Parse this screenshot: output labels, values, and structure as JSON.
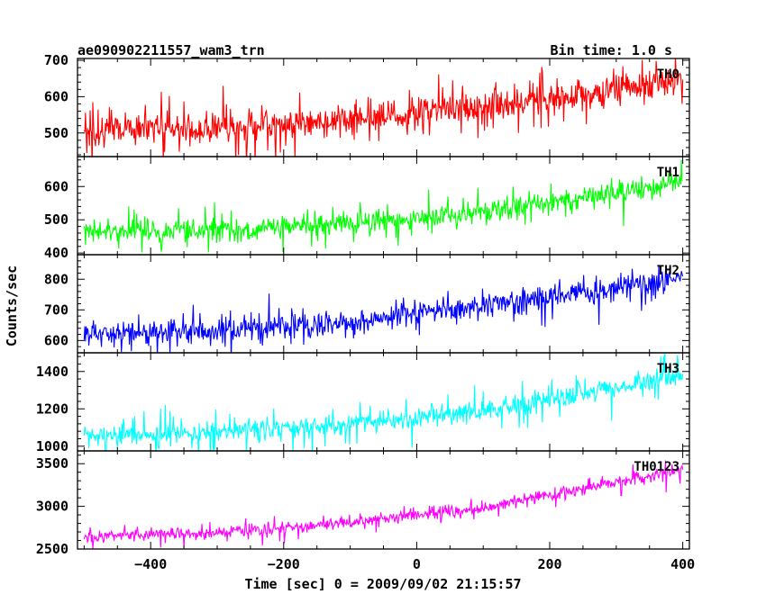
{
  "header": {
    "left_title": "ae090902211557_wam3_trn",
    "right_title": "Bin time: 1.0 s"
  },
  "chart_data": {
    "type": "line",
    "title": "ae090902211557_wam3_trn",
    "subtitle": "Bin time: 1.0 s",
    "xlabel": "Time [sec] 0 = 2009/09/02 21:15:57",
    "ylabel": "Counts/sec",
    "xlim": [
      -510,
      410
    ],
    "x_ticks": [
      -400,
      -200,
      0,
      200,
      400
    ],
    "x_tick_labels": [
      "−400",
      "−200",
      "0",
      "200",
      "400"
    ],
    "x_range": [
      -500,
      400
    ],
    "bin_time": 1.0,
    "grid": false,
    "panels": [
      {
        "name": "TH0",
        "color": "#ff0000",
        "ylim": [
          435,
          705
        ],
        "y_ticks": [
          500,
          600,
          700
        ],
        "trend_x": [
          -500,
          -300,
          -100,
          100,
          300,
          400
        ],
        "trend_y": [
          510,
          512,
          535,
          570,
          620,
          645
        ],
        "noise": 40,
        "spike_max": 90
      },
      {
        "name": "TH1",
        "color": "#00ff00",
        "ylim": [
          395,
          690
        ],
        "y_ticks": [
          400,
          500,
          600
        ],
        "trend_x": [
          -500,
          -300,
          -100,
          100,
          300,
          400
        ],
        "trend_y": [
          460,
          470,
          490,
          525,
          580,
          615
        ],
        "noise": 30,
        "spike_max": 65
      },
      {
        "name": "TH2",
        "color": "#0000ff",
        "ylim": [
          560,
          880
        ],
        "y_ticks": [
          600,
          700,
          800
        ],
        "trend_x": [
          -500,
          -300,
          -100,
          100,
          300,
          400
        ],
        "trend_y": [
          625,
          630,
          660,
          715,
          770,
          800
        ],
        "noise": 35,
        "spike_max": 75
      },
      {
        "name": "TH3",
        "color": "#00ffff",
        "ylim": [
          975,
          1500
        ],
        "y_ticks": [
          1000,
          1200,
          1400
        ],
        "trend_x": [
          -500,
          -300,
          -100,
          100,
          300,
          400
        ],
        "trend_y": [
          1055,
          1075,
          1120,
          1190,
          1310,
          1380
        ],
        "noise": 50,
        "spike_max": 130
      },
      {
        "name": "TH0123",
        "color": "#ff00ff",
        "ylim": [
          2500,
          3650
        ],
        "y_ticks": [
          2500,
          3000,
          3500
        ],
        "trend_x": [
          -500,
          -300,
          -100,
          100,
          300,
          400
        ],
        "trend_y": [
          2650,
          2690,
          2810,
          2990,
          3280,
          3430
        ],
        "noise": 65,
        "spike_max": 160
      }
    ]
  }
}
